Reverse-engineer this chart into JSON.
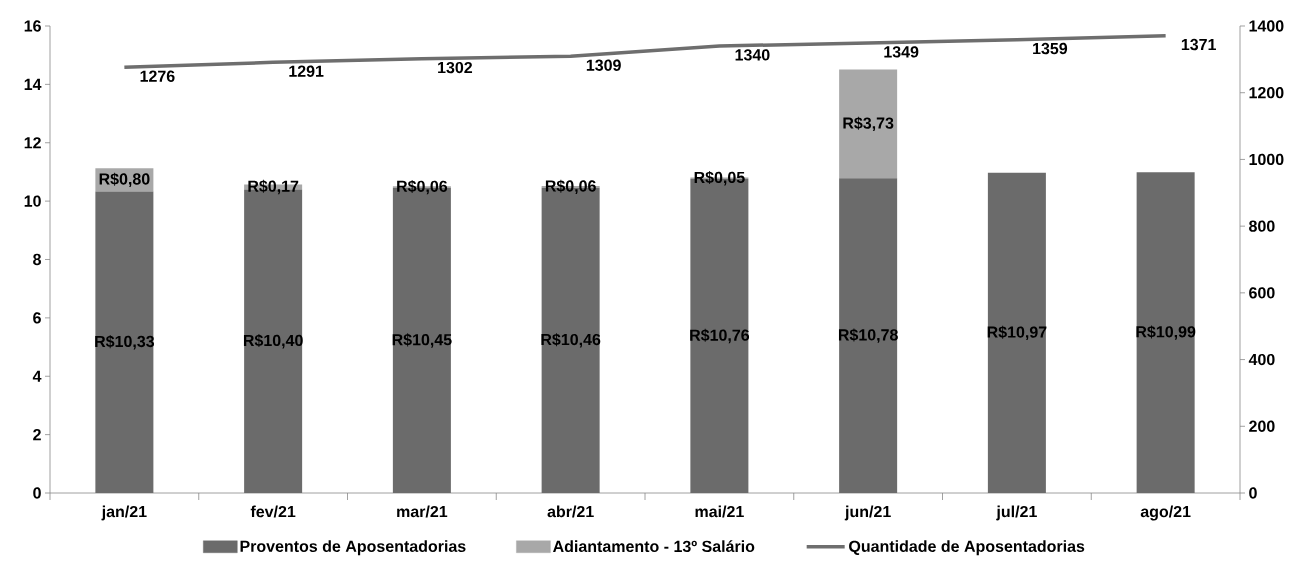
{
  "chart_data": {
    "type": "bar",
    "stacked": true,
    "categories": [
      "jan/21",
      "fev/21",
      "mar/21",
      "abr/21",
      "mai/21",
      "jun/21",
      "jul/21",
      "ago/21"
    ],
    "series": [
      {
        "name": "Proventos de Aposentadorias",
        "color": "#6b6b6b",
        "values": [
          10.33,
          10.4,
          10.45,
          10.46,
          10.76,
          10.78,
          10.97,
          10.99
        ],
        "value_labels": [
          "R$10,33",
          "R$10,40",
          "R$10,45",
          "R$10,46",
          "R$10,76",
          "R$10,78",
          "R$10,97",
          "R$10,99"
        ]
      },
      {
        "name": "Adiantamento - 13º Salário",
        "color": "#a8a8a8",
        "values": [
          0.8,
          0.17,
          0.06,
          0.06,
          0.05,
          3.73,
          null,
          null
        ],
        "value_labels": [
          "R$0,80",
          "R$0,17",
          "R$0,06",
          "R$0,06",
          "R$0,05",
          "R$3,73",
          null,
          null
        ]
      },
      {
        "name": "Quantidade de Aposentadorias",
        "type": "line",
        "axis": "y2",
        "color": "#6e6e6e",
        "values": [
          1276,
          1291,
          1302,
          1309,
          1340,
          1349,
          1359,
          1371
        ],
        "value_labels": [
          "1276",
          "1291",
          "1302",
          "1309",
          "1340",
          "1349",
          "1359",
          "1371"
        ]
      }
    ],
    "ylim": [
      0,
      16
    ],
    "yticks": [
      0,
      2,
      4,
      6,
      8,
      10,
      12,
      14,
      16
    ],
    "y2lim": [
      0,
      1400
    ],
    "y2ticks": [
      0,
      200,
      400,
      600,
      800,
      1000,
      1200,
      1400
    ],
    "legend": "bottom"
  }
}
